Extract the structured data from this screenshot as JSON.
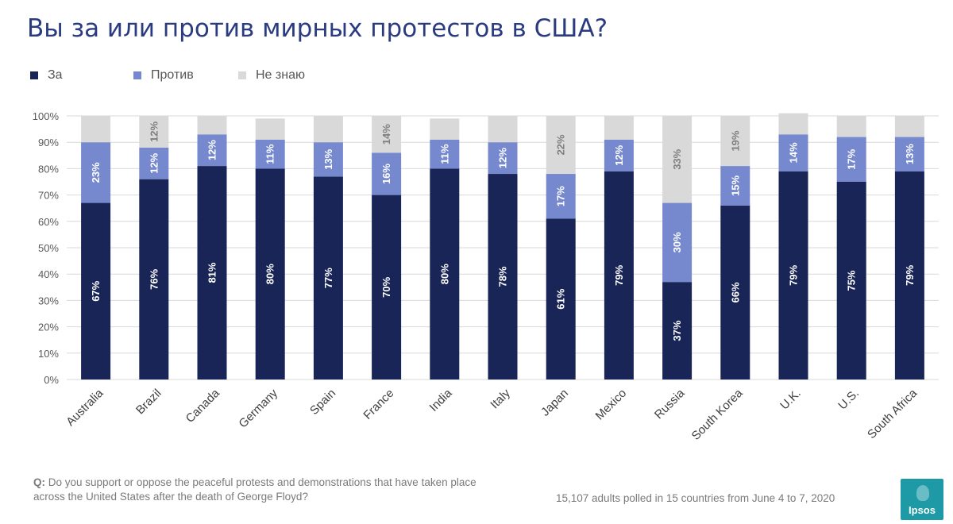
{
  "title": "Вы за или против мирных протестов в США?",
  "legend": [
    {
      "label": "За",
      "color": "#1a2557"
    },
    {
      "label": "Против",
      "color": "#7689cf"
    },
    {
      "label": "Не знаю",
      "color": "#d9d9d9"
    }
  ],
  "question": {
    "prefix": "Q:",
    "text": "Do you support or oppose the peaceful protests and demonstrations that have taken place across the United States after the death of George Floyd?"
  },
  "footnote": "15,107 adults polled in 15 countries from June 4 to 7, 2020",
  "logo": {
    "text": "Ipsos",
    "color": "#1d9aa6"
  },
  "chart_data": {
    "type": "bar",
    "stacked": true,
    "categories": [
      "Australia",
      "Brazil",
      "Canada",
      "Germany",
      "Spain",
      "France",
      "India",
      "Italy",
      "Japan",
      "Mexico",
      "Russia",
      "South Korea",
      "U.K.",
      "U.S.",
      "South Africa"
    ],
    "series": [
      {
        "name": "За",
        "color": "#1a2557",
        "values": [
          67,
          76,
          81,
          80,
          77,
          70,
          80,
          78,
          61,
          79,
          37,
          66,
          79,
          75,
          79
        ],
        "labels": [
          "67%",
          "76%",
          "81%",
          "80%",
          "77%",
          "70%",
          "80%",
          "78%",
          "61%",
          "79%",
          "37%",
          "66%",
          "79%",
          "75%",
          "79%"
        ]
      },
      {
        "name": "Против",
        "color": "#7689cf",
        "values": [
          23,
          12,
          12,
          11,
          13,
          16,
          11,
          12,
          17,
          12,
          30,
          15,
          14,
          17,
          13
        ],
        "labels": [
          "23%",
          "12%",
          "12%",
          "11%",
          "13%",
          "16%",
          "11%",
          "12%",
          "17%",
          "12%",
          "30%",
          "15%",
          "14%",
          "17%",
          "13%"
        ]
      },
      {
        "name": "Не знаю",
        "color": "#d9d9d9",
        "values": [
          10,
          12,
          7,
          8,
          10,
          14,
          8,
          10,
          22,
          9,
          33,
          19,
          8,
          8,
          8
        ],
        "labels": [
          "",
          "12%",
          "",
          "",
          "",
          "14%",
          "",
          "",
          "22%",
          "",
          "33%",
          "19%",
          "",
          "",
          ""
        ]
      }
    ],
    "y_ticks": [
      "0%",
      "10%",
      "20%",
      "30%",
      "40%",
      "50%",
      "60%",
      "70%",
      "80%",
      "90%",
      "100%"
    ],
    "ylim": [
      0,
      100
    ],
    "grid": true,
    "legend_position": "top-left"
  }
}
